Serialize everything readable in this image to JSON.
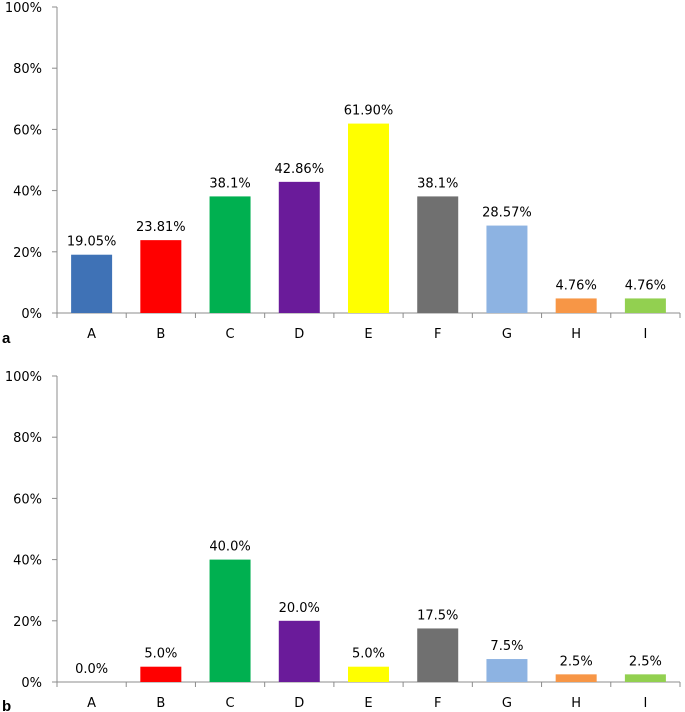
{
  "chart_data": [
    {
      "panel": "a",
      "type": "bar",
      "categories": [
        "A",
        "B",
        "C",
        "D",
        "E",
        "F",
        "G",
        "H",
        "I"
      ],
      "values": [
        19.05,
        23.81,
        38.1,
        42.86,
        61.9,
        38.1,
        28.57,
        4.76,
        4.76
      ],
      "data_labels": [
        "19.05%",
        "23.81%",
        "38.1%",
        "42.86%",
        "61.90%",
        "38.1%",
        "28.57%",
        "4.76%",
        "4.76%"
      ],
      "colors": [
        "#3f72b6",
        "#ff0000",
        "#00b050",
        "#6a1b9a",
        "#ffff00",
        "#707070",
        "#8db3e2",
        "#f79646",
        "#92d050"
      ],
      "yticks": [
        "0%",
        "20%",
        "40%",
        "60%",
        "80%",
        "100%"
      ],
      "ylim": [
        0,
        100
      ],
      "grid": false,
      "legend": "none"
    },
    {
      "panel": "b",
      "type": "bar",
      "categories": [
        "A",
        "B",
        "C",
        "D",
        "E",
        "F",
        "G",
        "H",
        "I"
      ],
      "values": [
        0.0,
        5.0,
        40.0,
        20.0,
        5.0,
        17.5,
        7.5,
        2.5,
        2.5
      ],
      "data_labels": [
        "0.0%",
        "5.0%",
        "40.0%",
        "20.0%",
        "5.0%",
        "17.5%",
        "7.5%",
        "2.5%",
        "2.5%"
      ],
      "colors": [
        "#3f72b6",
        "#ff0000",
        "#00b050",
        "#6a1b9a",
        "#ffff00",
        "#707070",
        "#8db3e2",
        "#f79646",
        "#92d050"
      ],
      "yticks": [
        "0%",
        "20%",
        "40%",
        "60%",
        "80%",
        "100%"
      ],
      "ylim": [
        0,
        100
      ],
      "grid": false,
      "legend": "none"
    }
  ]
}
